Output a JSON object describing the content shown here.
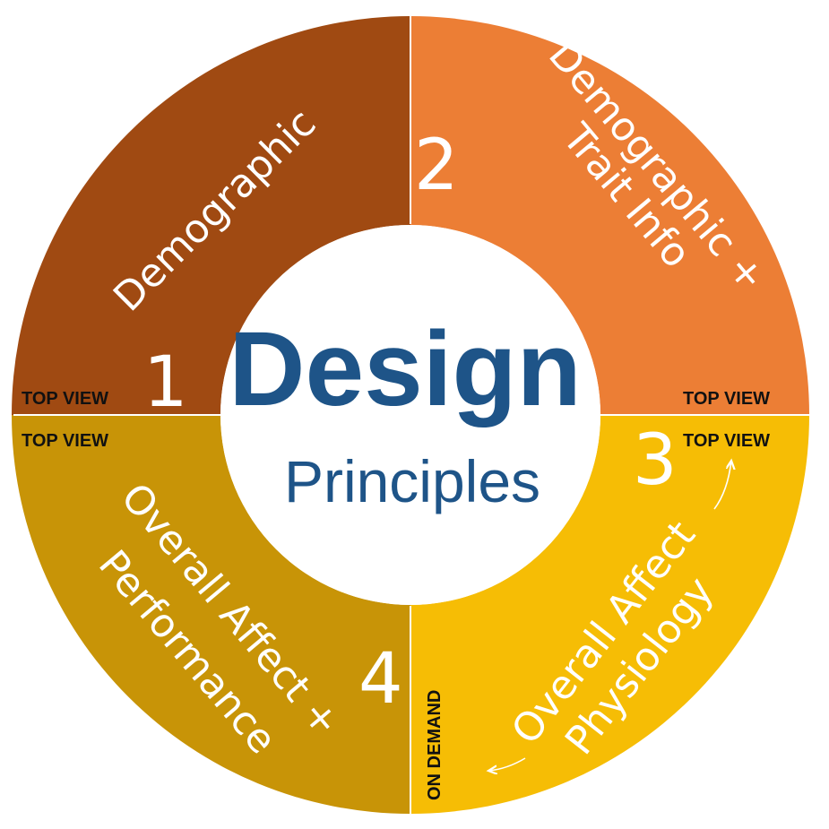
{
  "center": {
    "title": "Design",
    "subtitle": "Principles",
    "color": "#1e5488"
  },
  "segments": [
    {
      "number": "1",
      "label_lines": [
        "Demographic"
      ],
      "tag": "TOP VIEW",
      "color": "#a04a12"
    },
    {
      "number": "2",
      "label_lines": [
        "Demographic +",
        "Trait Info"
      ],
      "tag": "TOP VIEW",
      "color": "#ec7e35"
    },
    {
      "number": "3",
      "label_lines": [
        "Overall Affect",
        "Physiology"
      ],
      "tag": "TOP VIEW",
      "tag_secondary": "ON DEMAND",
      "color": "#f6bd05"
    },
    {
      "number": "4",
      "label_lines": [
        "Overall Affect +",
        "Performance"
      ],
      "tag": "TOP VIEW",
      "color": "#c89407"
    }
  ]
}
